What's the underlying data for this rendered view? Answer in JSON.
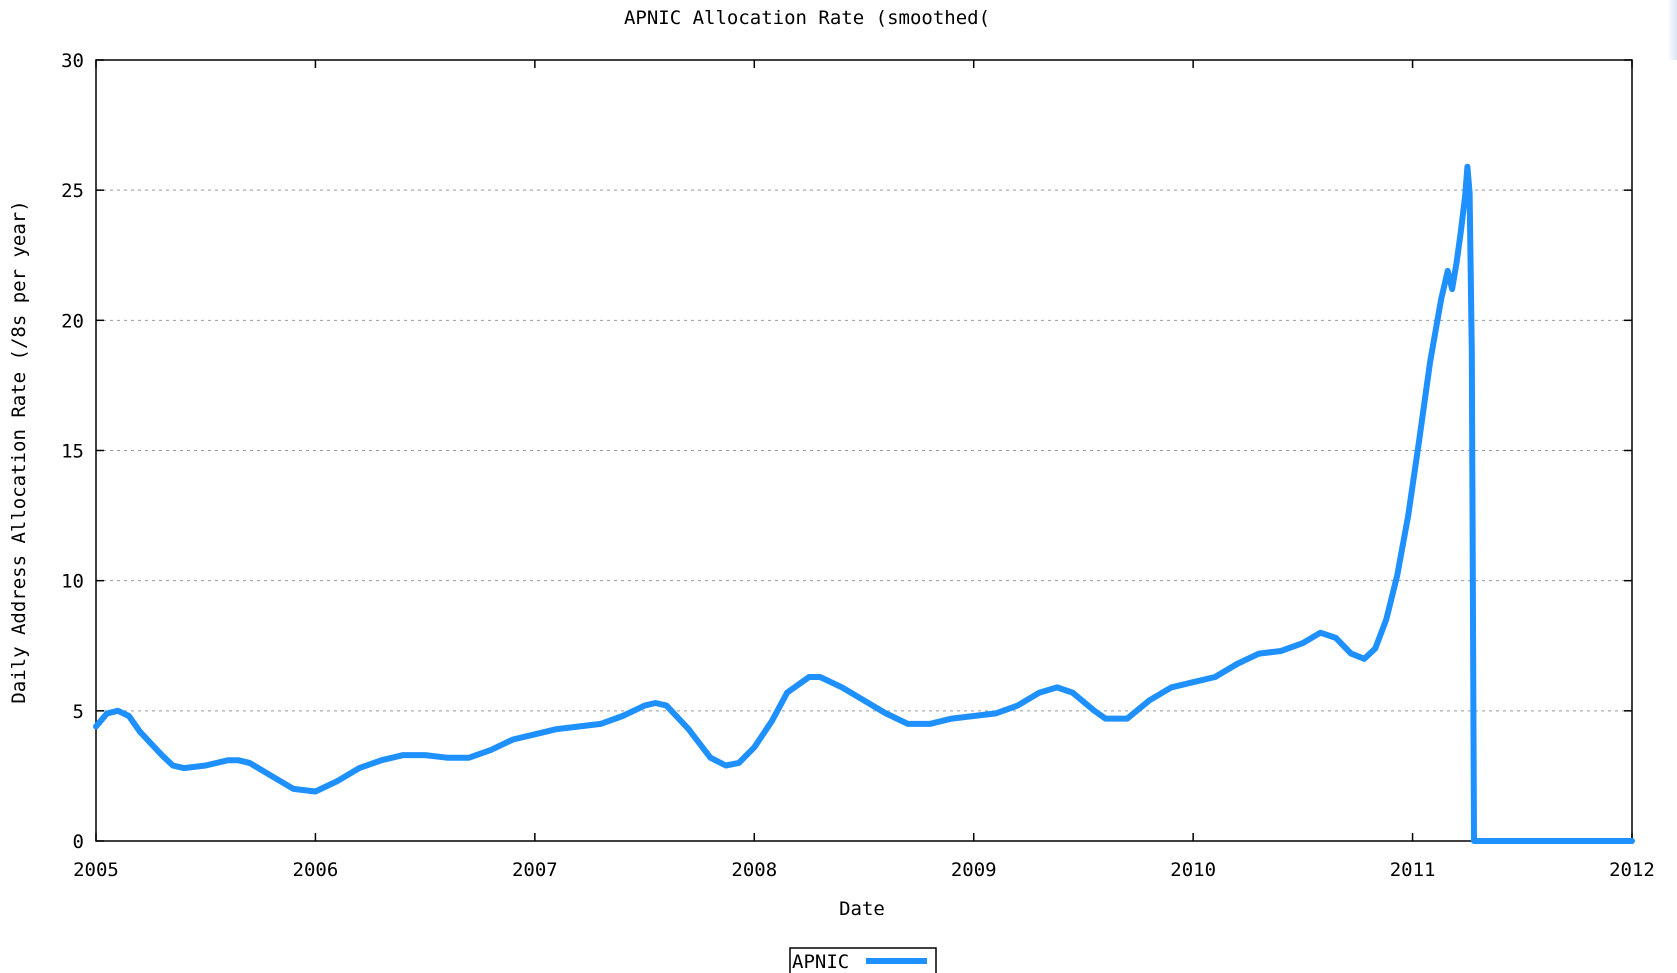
{
  "chart_data": {
    "type": "line",
    "title": "APNIC Allocation Rate (smoothed(",
    "xlabel": "Date",
    "ylabel": "Daily Address Allocation Rate (/8s per year)",
    "xlim": [
      2005,
      2012
    ],
    "ylim": [
      0,
      30
    ],
    "x_ticks": [
      "2005",
      "2006",
      "2007",
      "2008",
      "2009",
      "2010",
      "2011",
      "2012"
    ],
    "y_ticks": [
      "0",
      "5",
      "10",
      "15",
      "20",
      "25",
      "30"
    ],
    "grid": "horizontal-dashed",
    "legend_position": "bottom-center",
    "series": [
      {
        "name": "APNIC",
        "color": "#1e90ff",
        "points": [
          [
            2005.0,
            4.4
          ],
          [
            2005.05,
            4.9
          ],
          [
            2005.1,
            5.0
          ],
          [
            2005.15,
            4.8
          ],
          [
            2005.2,
            4.2
          ],
          [
            2005.3,
            3.3
          ],
          [
            2005.35,
            2.9
          ],
          [
            2005.4,
            2.8
          ],
          [
            2005.5,
            2.9
          ],
          [
            2005.6,
            3.1
          ],
          [
            2005.65,
            3.1
          ],
          [
            2005.7,
            3.0
          ],
          [
            2005.8,
            2.5
          ],
          [
            2005.9,
            2.0
          ],
          [
            2006.0,
            1.9
          ],
          [
            2006.1,
            2.3
          ],
          [
            2006.2,
            2.8
          ],
          [
            2006.3,
            3.1
          ],
          [
            2006.4,
            3.3
          ],
          [
            2006.5,
            3.3
          ],
          [
            2006.6,
            3.2
          ],
          [
            2006.7,
            3.2
          ],
          [
            2006.8,
            3.5
          ],
          [
            2006.9,
            3.9
          ],
          [
            2007.0,
            4.1
          ],
          [
            2007.1,
            4.3
          ],
          [
            2007.2,
            4.4
          ],
          [
            2007.3,
            4.5
          ],
          [
            2007.4,
            4.8
          ],
          [
            2007.5,
            5.2
          ],
          [
            2007.55,
            5.3
          ],
          [
            2007.6,
            5.2
          ],
          [
            2007.7,
            4.3
          ],
          [
            2007.8,
            3.2
          ],
          [
            2007.87,
            2.9
          ],
          [
            2007.93,
            3.0
          ],
          [
            2008.0,
            3.6
          ],
          [
            2008.08,
            4.6
          ],
          [
            2008.15,
            5.7
          ],
          [
            2008.25,
            6.3
          ],
          [
            2008.3,
            6.3
          ],
          [
            2008.4,
            5.9
          ],
          [
            2008.5,
            5.4
          ],
          [
            2008.6,
            4.9
          ],
          [
            2008.7,
            4.5
          ],
          [
            2008.8,
            4.5
          ],
          [
            2008.9,
            4.7
          ],
          [
            2009.0,
            4.8
          ],
          [
            2009.1,
            4.9
          ],
          [
            2009.2,
            5.2
          ],
          [
            2009.3,
            5.7
          ],
          [
            2009.38,
            5.9
          ],
          [
            2009.45,
            5.7
          ],
          [
            2009.55,
            5.0
          ],
          [
            2009.6,
            4.7
          ],
          [
            2009.7,
            4.7
          ],
          [
            2009.8,
            5.4
          ],
          [
            2009.9,
            5.9
          ],
          [
            2010.0,
            6.1
          ],
          [
            2010.1,
            6.3
          ],
          [
            2010.2,
            6.8
          ],
          [
            2010.3,
            7.2
          ],
          [
            2010.4,
            7.3
          ],
          [
            2010.5,
            7.6
          ],
          [
            2010.58,
            8.0
          ],
          [
            2010.65,
            7.8
          ],
          [
            2010.72,
            7.2
          ],
          [
            2010.78,
            7.0
          ],
          [
            2010.83,
            7.4
          ],
          [
            2010.88,
            8.5
          ],
          [
            2010.93,
            10.2
          ],
          [
            2010.98,
            12.5
          ],
          [
            2011.03,
            15.4
          ],
          [
            2011.08,
            18.4
          ],
          [
            2011.13,
            20.8
          ],
          [
            2011.16,
            21.9
          ],
          [
            2011.18,
            21.2
          ],
          [
            2011.2,
            22.2
          ],
          [
            2011.22,
            23.4
          ],
          [
            2011.24,
            24.8
          ],
          [
            2011.25,
            25.9
          ],
          [
            2011.26,
            24.9
          ],
          [
            2011.27,
            18.8
          ],
          [
            2011.28,
            0.0
          ],
          [
            2012.0,
            0.0
          ]
        ]
      }
    ]
  }
}
